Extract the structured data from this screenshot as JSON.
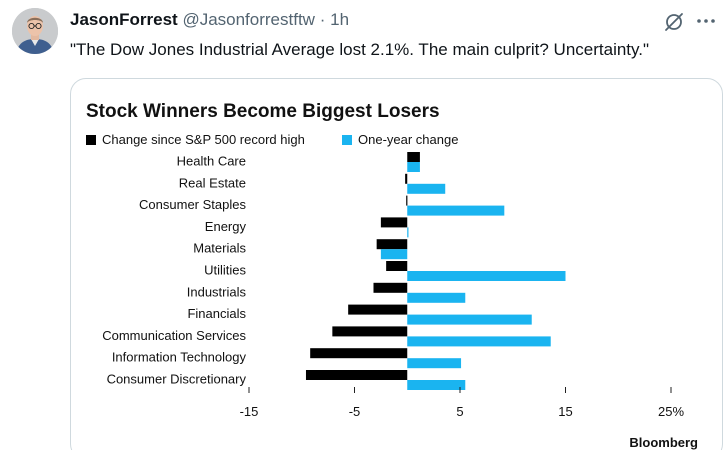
{
  "tweet": {
    "display_name": "JasonForrest",
    "handle": "@Jasonforrestftw",
    "separator": "·",
    "time": "1h",
    "text": "\"The Dow Jones Industrial Average lost 2.1%. The main culprit? Uncertainty.\""
  },
  "icons": {
    "avatar": "avatar",
    "grok": "grok-icon",
    "more": "more-icon"
  },
  "chart_data": {
    "type": "bar",
    "orientation": "horizontal",
    "title": "Stock Winners Become Biggest Losers",
    "source": "Bloomberg",
    "categories": [
      "Health Care",
      "Real Estate",
      "Consumer Staples",
      "Energy",
      "Materials",
      "Utilities",
      "Industrials",
      "Financials",
      "Communication Services",
      "Information Technology",
      "Consumer Discretionary"
    ],
    "series": [
      {
        "name": "Change since S&P 500 record high",
        "color": "#000000",
        "values": [
          1.2,
          -0.2,
          -0.1,
          -2.5,
          -2.9,
          -2.0,
          -3.2,
          -5.6,
          -7.1,
          -9.2,
          -9.6
        ]
      },
      {
        "name": "One-year change",
        "color": "#1ab4f0",
        "values": [
          1.2,
          3.6,
          9.2,
          0.1,
          -2.5,
          15.0,
          5.5,
          11.8,
          13.6,
          5.1,
          5.5
        ]
      }
    ],
    "x_ticks": [
      -15,
      -5,
      5,
      15,
      25
    ],
    "x_tick_labels": [
      "-15",
      "-5",
      "5",
      "15",
      "25%"
    ],
    "xlim": [
      -15,
      25
    ],
    "grid": false,
    "legend_position": "top-left"
  }
}
